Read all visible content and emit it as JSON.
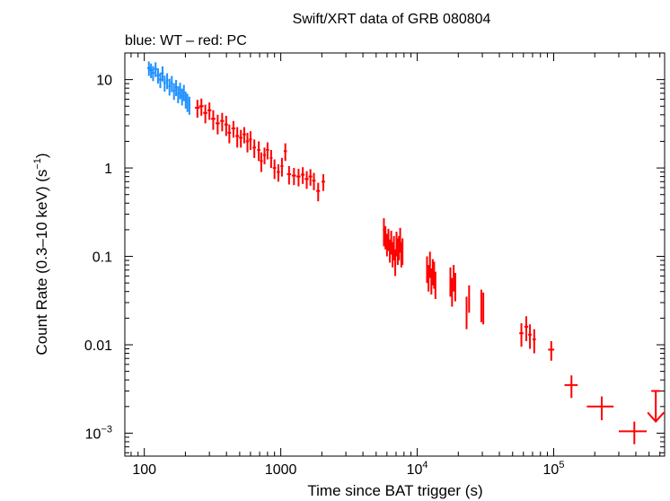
{
  "chart_data": {
    "type": "scatter",
    "title": "Swift/XRT data of GRB 080804",
    "subtitle": "blue: WT – red: PC",
    "xlabel": "Time since BAT trigger (s)",
    "ylabel": "Count Rate (0.3–10 keV) (s",
    "ylabel_sup": "−1",
    "ylabel_end": ")",
    "x_scale": "log",
    "y_scale": "log",
    "xlim": [
      72,
      650000
    ],
    "ylim": [
      0.00055,
      20
    ],
    "x_ticks": [
      {
        "value": 100,
        "label": "100",
        "sup": ""
      },
      {
        "value": 1000,
        "label": "1000",
        "sup": ""
      },
      {
        "value": 10000,
        "label": "10",
        "sup": "4"
      },
      {
        "value": 100000,
        "label": "10",
        "sup": "5"
      }
    ],
    "y_ticks": [
      {
        "value": 10,
        "label": "10",
        "sup": ""
      },
      {
        "value": 1,
        "label": "1",
        "sup": ""
      },
      {
        "value": 0.1,
        "label": "0.1",
        "sup": ""
      },
      {
        "value": 0.01,
        "label": "0.01",
        "sup": ""
      },
      {
        "value": 0.001,
        "label": "10",
        "sup": "−3"
      }
    ],
    "series": [
      {
        "name": "WT",
        "color": "#1e90ff",
        "points": [
          [
            108,
            13.5,
            3,
            2.5
          ],
          [
            112,
            12.8,
            3,
            2.4
          ],
          [
            116,
            11.9,
            3,
            2.3
          ],
          [
            121,
            13.2,
            3,
            2.5
          ],
          [
            126,
            11.2,
            3,
            2.2
          ],
          [
            131,
            10.0,
            3,
            2.0
          ],
          [
            136,
            11.8,
            3,
            2.3
          ],
          [
            141,
            9.2,
            3,
            1.9
          ],
          [
            147,
            9.8,
            3,
            2.0
          ],
          [
            153,
            8.4,
            3,
            1.8
          ],
          [
            159,
            9.1,
            3,
            1.9
          ],
          [
            165,
            7.5,
            3,
            1.6
          ],
          [
            171,
            8.2,
            3,
            1.7
          ],
          [
            177,
            6.9,
            3,
            1.5
          ],
          [
            183,
            7.6,
            3,
            1.6
          ],
          [
            189,
            6.5,
            3,
            1.4
          ],
          [
            195,
            7.2,
            3,
            1.5
          ],
          [
            201,
            6.0,
            3,
            1.3
          ],
          [
            207,
            5.6,
            3,
            1.3
          ],
          [
            214,
            5.2,
            3,
            1.2
          ]
        ]
      },
      {
        "name": "PC",
        "color": "#ff0000",
        "points": [
          [
            245,
            4.8,
            10,
            1.1
          ],
          [
            262,
            5.0,
            10,
            1.1
          ],
          [
            280,
            4.2,
            10,
            1.0
          ],
          [
            300,
            4.5,
            10,
            1.0
          ],
          [
            320,
            3.6,
            12,
            0.9
          ],
          [
            345,
            3.2,
            12,
            0.8
          ],
          [
            372,
            3.4,
            12,
            0.8
          ],
          [
            398,
            3.1,
            12,
            0.8
          ],
          [
            420,
            2.5,
            12,
            0.6
          ],
          [
            450,
            2.8,
            15,
            0.6
          ],
          [
            480,
            2.3,
            15,
            0.6
          ],
          [
            510,
            2.2,
            15,
            0.5
          ],
          [
            540,
            2.4,
            15,
            0.5
          ],
          [
            570,
            2.0,
            15,
            0.5
          ],
          [
            600,
            2.1,
            15,
            0.5
          ],
          [
            640,
            1.7,
            18,
            0.4
          ],
          [
            690,
            1.6,
            18,
            0.4
          ],
          [
            720,
            1.2,
            18,
            0.3
          ],
          [
            760,
            1.4,
            18,
            0.3
          ],
          [
            800,
            1.6,
            20,
            0.35
          ],
          [
            850,
            1.3,
            20,
            0.3
          ],
          [
            900,
            1.0,
            25,
            0.25
          ],
          [
            960,
            0.9,
            25,
            0.2
          ],
          [
            1020,
            1.05,
            25,
            0.25
          ],
          [
            1080,
            1.55,
            30,
            0.35
          ],
          [
            1150,
            0.85,
            40,
            0.2
          ],
          [
            1250,
            0.82,
            45,
            0.18
          ],
          [
            1350,
            0.8,
            45,
            0.18
          ],
          [
            1450,
            0.84,
            45,
            0.18
          ],
          [
            1550,
            0.75,
            50,
            0.17
          ],
          [
            1650,
            0.8,
            50,
            0.17
          ],
          [
            1750,
            0.72,
            50,
            0.16
          ],
          [
            1880,
            0.55,
            60,
            0.13
          ],
          [
            2050,
            0.7,
            60,
            0.15
          ],
          [
            5700,
            0.2,
            100,
            0.07
          ],
          [
            5850,
            0.17,
            100,
            0.05
          ],
          [
            6000,
            0.14,
            100,
            0.04
          ],
          [
            6150,
            0.16,
            100,
            0.045
          ],
          [
            6300,
            0.12,
            100,
            0.035
          ],
          [
            6450,
            0.15,
            100,
            0.045
          ],
          [
            6600,
            0.11,
            100,
            0.035
          ],
          [
            6750,
            0.13,
            100,
            0.04
          ],
          [
            6900,
            0.09,
            100,
            0.03
          ],
          [
            7050,
            0.145,
            100,
            0.045
          ],
          [
            7200,
            0.12,
            100,
            0.04
          ],
          [
            7350,
            0.13,
            100,
            0.04
          ],
          [
            7500,
            0.16,
            100,
            0.05
          ],
          [
            7650,
            0.11,
            100,
            0.035
          ],
          [
            7800,
            0.12,
            100,
            0.04
          ],
          [
            11800,
            0.075,
            120,
            0.025
          ],
          [
            12100,
            0.06,
            120,
            0.02
          ],
          [
            12400,
            0.085,
            120,
            0.028
          ],
          [
            12700,
            0.055,
            120,
            0.018
          ],
          [
            13000,
            0.07,
            120,
            0.023
          ],
          [
            13300,
            0.065,
            120,
            0.022
          ],
          [
            13600,
            0.05,
            120,
            0.017
          ],
          [
            17500,
            0.055,
            150,
            0.02
          ],
          [
            18000,
            0.042,
            150,
            0.015
          ],
          [
            18500,
            0.06,
            150,
            0.02
          ],
          [
            19000,
            0.048,
            150,
            0.017
          ],
          [
            23000,
            0.025,
            200,
            0.01
          ],
          [
            24000,
            0.035,
            200,
            0.012
          ],
          [
            29500,
            0.03,
            300,
            0.012
          ],
          [
            30500,
            0.028,
            300,
            0.011
          ],
          [
            58000,
            0.0135,
            2000,
            0.004
          ],
          [
            63000,
            0.016,
            2000,
            0.005
          ],
          [
            67000,
            0.013,
            2000,
            0.004
          ],
          [
            72000,
            0.0115,
            2000,
            0.0035
          ],
          [
            96000,
            0.0088,
            5000,
            0.0022
          ],
          [
            135000,
            0.0035,
            15000,
            0.001
          ],
          [
            225000,
            0.002,
            50000,
            0.0006
          ],
          [
            390000,
            0.00105,
            90000,
            0.0003
          ]
        ]
      }
    ],
    "upper_limit": {
      "x": 560000,
      "y": 0.003,
      "color": "#ff0000"
    }
  }
}
